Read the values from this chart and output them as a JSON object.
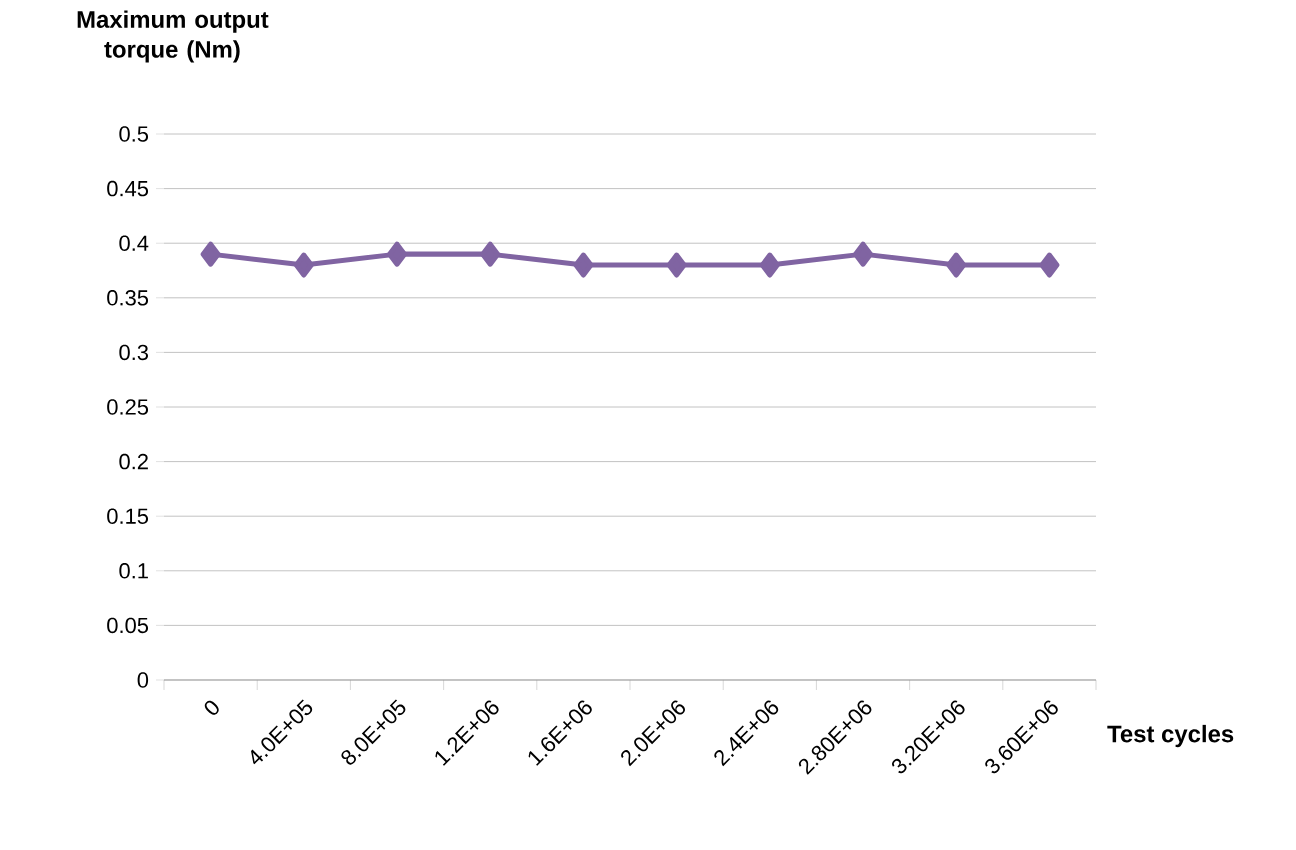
{
  "chart_data": {
    "type": "line",
    "ylabel": "Maximum output torque (Nm)",
    "xlabel": "Test cycles",
    "categories": [
      "0",
      "4.0E+05",
      "8.0E+05",
      "1.2E+06",
      "1.6E+06",
      "2.0E+06",
      "2.4E+06",
      "2.80E+06",
      "3.20E+06",
      "3.60E+06"
    ],
    "series": [
      {
        "color": "#8064a2",
        "values": [
          0.39,
          0.38,
          0.39,
          0.39,
          0.38,
          0.38,
          0.38,
          0.39,
          0.38,
          0.38
        ]
      }
    ],
    "ylim": [
      0,
      0.5
    ],
    "yticks": [
      0,
      0.05,
      0.1,
      0.15,
      0.2,
      0.25,
      0.3,
      0.35,
      0.4,
      0.45,
      0.5
    ],
    "grid": "y",
    "marker": "diamond",
    "line_style": "solid"
  }
}
